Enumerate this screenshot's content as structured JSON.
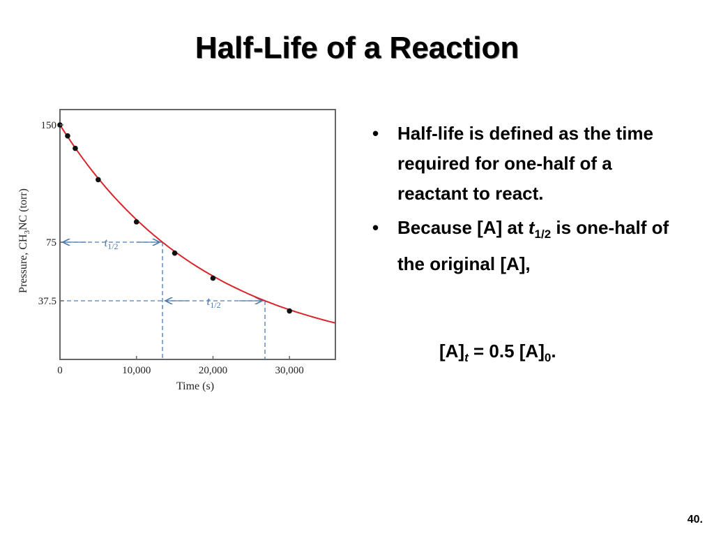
{
  "slide": {
    "title": "Half-Life of a Reaction",
    "slide_number": "40."
  },
  "bullets": {
    "b1": "Half-life is defined as the time required for one-half of a reactant to react.",
    "b2_before": "Because [A] at ",
    "b2_t": "t",
    "b2_sub": "1/2",
    "b2_after": " is one-half of the original [A],",
    "eq_A": "[A]",
    "eq_t": "t",
    "eq_mid": " = 0.5 [A]",
    "eq_zero": "0",
    "eq_end": "."
  },
  "chart_data": {
    "type": "line",
    "title": "",
    "xlabel": "Time (s)",
    "ylabel": "Pressure, CH3NC (torr)",
    "xlim": [
      0,
      36000
    ],
    "ylim": [
      0,
      160
    ],
    "x_ticks": [
      0,
      10000,
      20000,
      30000
    ],
    "x_tick_labels": [
      "0",
      "10,000",
      "20,000",
      "30,000"
    ],
    "y_ticks": [
      37.5,
      75,
      150
    ],
    "y_tick_labels": [
      "37.5",
      "75",
      "150"
    ],
    "points": {
      "x": [
        0,
        1000,
        2000,
        5000,
        10000,
        15000,
        20000,
        30000
      ],
      "y": [
        150,
        143,
        135,
        115,
        88,
        68,
        52,
        31
      ]
    },
    "curve": {
      "initial": 150,
      "half_life": 13400,
      "x_end": 36000,
      "color": "#d9252a"
    },
    "half_life_markers": [
      {
        "label_t": "t",
        "label_sub": "1/2",
        "from_x": 0,
        "to_x": 13400,
        "level": 75
      },
      {
        "label_t": "t",
        "label_sub": "1/2",
        "from_x": 13400,
        "to_x": 26800,
        "level": 37.5
      }
    ],
    "colors": {
      "curve": "#d9252a",
      "guide": "#4a7ab0",
      "points": "#111111",
      "axes": "#444444"
    },
    "grid": false
  }
}
